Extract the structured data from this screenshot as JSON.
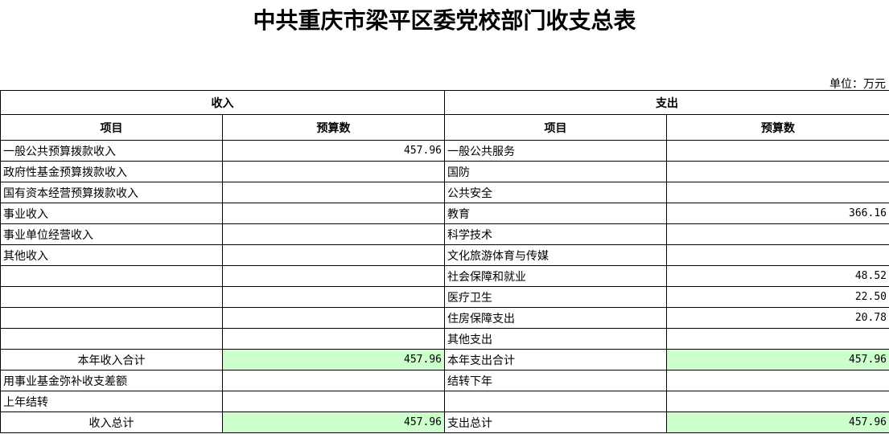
{
  "title": "中共重庆市梁平区委党校部门收支总表",
  "unit": "单位：万元",
  "header": {
    "income": "收入",
    "expense": "支出",
    "item": "项目",
    "budget": "预算数"
  },
  "rows": [
    {
      "inc": "一般公共预算拨款收入",
      "incv": "457.96",
      "exp": "一般公共服务",
      "expv": ""
    },
    {
      "inc": "政府性基金预算拨款收入",
      "incv": "",
      "exp": "国防",
      "expv": ""
    },
    {
      "inc": "国有资本经营预算拨款收入",
      "incv": "",
      "exp": "公共安全",
      "expv": ""
    },
    {
      "inc": "事业收入",
      "incv": "",
      "exp": "教育",
      "expv": "366.16"
    },
    {
      "inc": "事业单位经营收入",
      "incv": "",
      "exp": "科学技术",
      "expv": ""
    },
    {
      "inc": "其他收入",
      "incv": "",
      "exp": "文化旅游体育与传媒",
      "expv": ""
    },
    {
      "inc": "",
      "incv": "",
      "exp": "社会保障和就业",
      "expv": "48.52"
    },
    {
      "inc": "",
      "incv": "",
      "exp": "医疗卫生",
      "expv": "22.50"
    },
    {
      "inc": "",
      "incv": "",
      "exp": "住房保障支出",
      "expv": "20.78"
    },
    {
      "inc": "",
      "incv": "",
      "exp": "其他支出",
      "expv": ""
    },
    {
      "inc": "本年收入合计",
      "incv": "457.96",
      "exp": "本年支出合计",
      "expv": "457.96",
      "total": true
    },
    {
      "inc": "用事业基金弥补收支差额",
      "incv": "",
      "exp": "结转下年",
      "expv": ""
    },
    {
      "inc": "上年结转",
      "incv": "",
      "exp": "",
      "expv": ""
    },
    {
      "inc": "收入总计",
      "incv": "457.96",
      "exp": "支出总计",
      "expv": "457.96",
      "total": true
    }
  ],
  "colors": {
    "total_fill": "#ccffcc"
  }
}
